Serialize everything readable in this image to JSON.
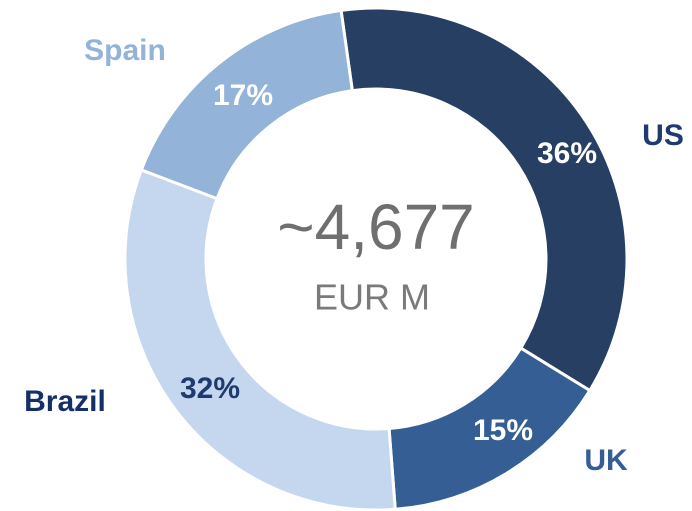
{
  "chart_data": {
    "type": "donut",
    "categories": [
      "US",
      "UK",
      "Brazil",
      "Spain"
    ],
    "values": [
      36,
      15,
      32,
      17
    ],
    "value_labels": [
      "36%",
      "15%",
      "32%",
      "17%"
    ],
    "colors": [
      "#263f63",
      "#355f94",
      "#c5d7ee",
      "#93b3d9"
    ],
    "center_value": "~4,677",
    "center_unit": "EUR M"
  }
}
